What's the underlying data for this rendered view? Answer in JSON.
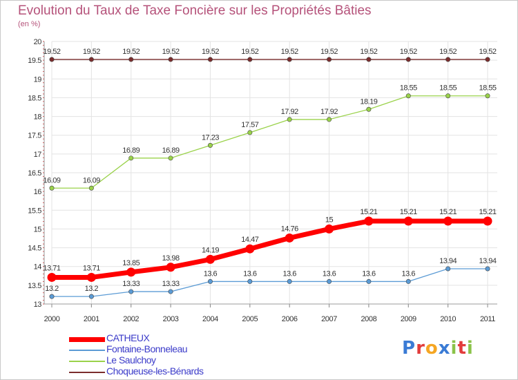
{
  "title": "Evolution du Taux de Taxe Foncière sur les Propriétés Bâties",
  "unit_label": "(en %)",
  "chart_data": {
    "type": "line",
    "x": [
      "2000",
      "2001",
      "2002",
      "2003",
      "2004",
      "2005",
      "2006",
      "2007",
      "2008",
      "2009",
      "2010",
      "2011"
    ],
    "ylim": [
      13,
      20
    ],
    "yticks": [
      "13",
      "13.5",
      "14",
      "14.5",
      "15",
      "15.5",
      "16",
      "16.5",
      "17",
      "17.5",
      "18",
      "18.5",
      "19",
      "19.5",
      "20"
    ],
    "grid": true,
    "legend_position": "bottom-left",
    "series": [
      {
        "name": "CATHEUX",
        "color": "#ff0000",
        "values": [
          13.71,
          13.71,
          13.85,
          13.98,
          14.19,
          14.47,
          14.76,
          15,
          15.21,
          15.21,
          15.21,
          15.21
        ],
        "labels": [
          "13.71",
          "13.71",
          "13.85",
          "13.98",
          "14.19",
          "14.47",
          "14.76",
          "15",
          "15.21",
          "15.21",
          "15.21",
          "15.21"
        ]
      },
      {
        "name": "Fontaine-Bonneleau",
        "color": "#5b9bd5",
        "values": [
          13.2,
          13.2,
          13.33,
          13.33,
          13.6,
          13.6,
          13.6,
          13.6,
          13.6,
          13.6,
          13.94,
          13.94
        ],
        "labels": [
          "13.2",
          "13.2",
          "13.33",
          "13.33",
          "13.6",
          "13.6",
          "13.6",
          "13.6",
          "13.6",
          "13.6",
          "13.94",
          "13.94"
        ]
      },
      {
        "name": "Le Saulchoy",
        "color": "#9ad24a",
        "values": [
          16.09,
          16.09,
          16.89,
          16.89,
          17.23,
          17.57,
          17.92,
          17.92,
          18.19,
          18.55,
          18.55,
          18.55
        ],
        "labels": [
          "16.09",
          "16.09",
          "16.89",
          "16.89",
          "17.23",
          "17.57",
          "17.92",
          "17.92",
          "18.19",
          "18.55",
          "18.55",
          "18.55"
        ]
      },
      {
        "name": "Choqueuse-les-Bénards",
        "color": "#7b2d2d",
        "values": [
          19.52,
          19.52,
          19.52,
          19.52,
          19.52,
          19.52,
          19.52,
          19.52,
          19.52,
          19.52,
          19.52,
          19.52
        ],
        "labels": [
          "19.52",
          "19.52",
          "19.52",
          "19.52",
          "19.52",
          "19.52",
          "19.52",
          "19.52",
          "19.52",
          "19.52",
          "19.52",
          "19.52"
        ]
      }
    ]
  },
  "logo": {
    "text": "Proxiti",
    "letters": [
      {
        "char": "P",
        "color": "#3a7bd5"
      },
      {
        "char": "r",
        "color": "#e23c3c"
      },
      {
        "char": "o",
        "color": "#f5a623"
      },
      {
        "char": "x",
        "color": "#3a7bd5"
      },
      {
        "char": "i",
        "color": "#8bc34a"
      },
      {
        "char": "t",
        "color": "#e23c3c"
      },
      {
        "char": "i",
        "color": "#8bc34a"
      }
    ]
  }
}
